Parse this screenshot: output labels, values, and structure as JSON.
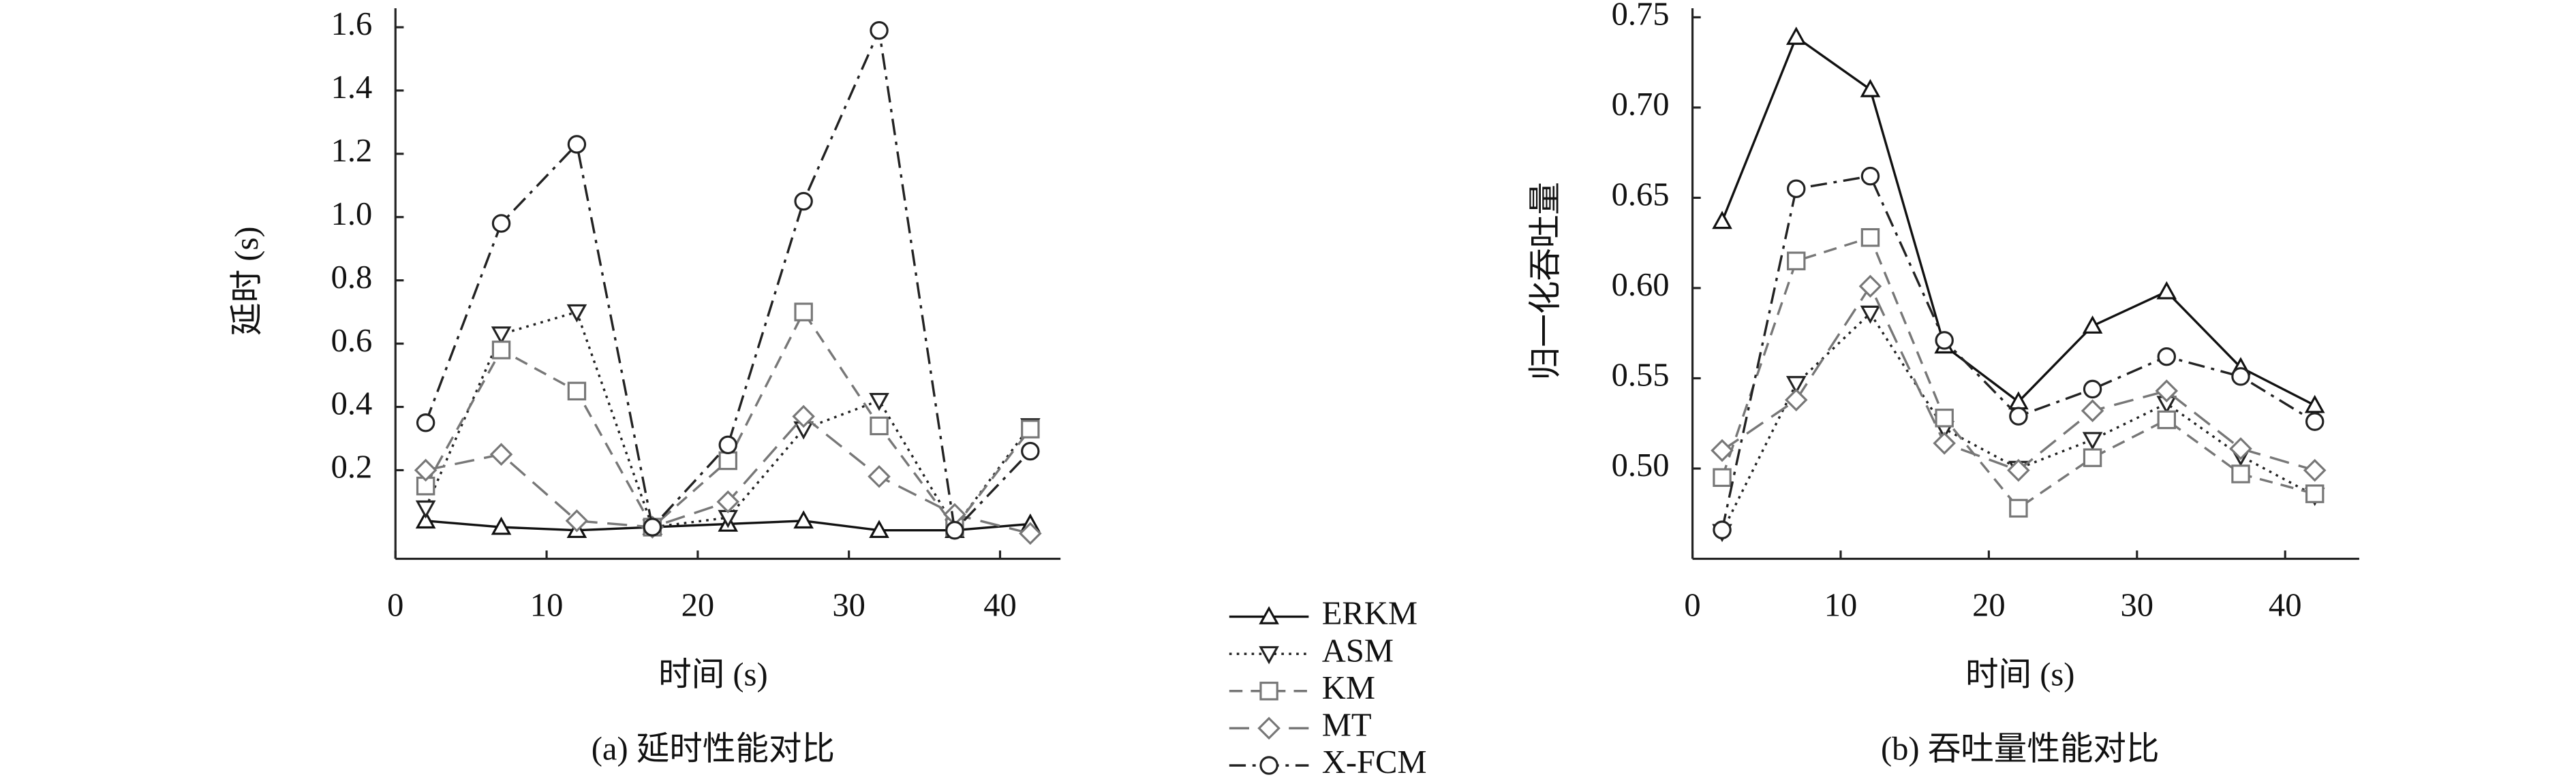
{
  "chart_data": [
    {
      "type": "line",
      "ylabel": "延时 (s)",
      "xlabel": "时间 (s)",
      "caption": "(a) 延时性能对比",
      "x": [
        2,
        7,
        12,
        17,
        22,
        27,
        32,
        37,
        42
      ],
      "xlim": [
        0,
        44
      ],
      "xticks": [
        0,
        10,
        20,
        30,
        40
      ],
      "ylim": [
        -0.08,
        1.66
      ],
      "yticks": [
        0.2,
        0.4,
        0.6,
        0.8,
        {
          "value": 1.0,
          "label": "1.0"
        },
        1.2,
        1.4,
        1.6
      ],
      "series": [
        {
          "name": "ERKM",
          "color": "#111111",
          "line_style": "solid",
          "marker": "triangle-up",
          "values": [
            0.04,
            0.02,
            0.01,
            0.02,
            0.03,
            0.04,
            0.01,
            0.01,
            0.03
          ]
        },
        {
          "name": "ASM",
          "color": "#222222",
          "line_style": "dotted",
          "marker": "triangle-down",
          "values": [
            0.08,
            0.63,
            0.7,
            0.02,
            0.05,
            0.33,
            0.42,
            0.02,
            0.34
          ]
        },
        {
          "name": "KM",
          "color": "#777777",
          "line_style": "dashed",
          "marker": "square",
          "values": [
            0.15,
            0.58,
            0.45,
            0.02,
            0.23,
            0.7,
            0.34,
            0.02,
            0.33
          ]
        },
        {
          "name": "MT",
          "color": "#777777",
          "line_style": "longdash",
          "marker": "diamond",
          "values": [
            0.2,
            0.25,
            0.04,
            0.02,
            0.1,
            0.37,
            0.18,
            0.06,
            0.0
          ]
        },
        {
          "name": "X-FCM",
          "color": "#222222",
          "line_style": "dashdot",
          "marker": "circle",
          "values": [
            0.35,
            0.98,
            1.23,
            0.02,
            0.28,
            1.05,
            1.59,
            0.01,
            0.26
          ]
        }
      ]
    },
    {
      "type": "line",
      "ylabel": "归一化吞吐量",
      "xlabel": "时间 (s)",
      "caption": "(b) 吞吐量性能对比",
      "x": [
        2,
        7,
        12,
        17,
        22,
        27,
        32,
        37,
        42
      ],
      "xlim": [
        0,
        45
      ],
      "xticks": [
        0,
        10,
        20,
        30,
        40
      ],
      "ylim": [
        0.45,
        0.755
      ],
      "yticks": [
        {
          "value": 0.5,
          "label": "0.50"
        },
        0.55,
        {
          "value": 0.6,
          "label": "0.60"
        },
        0.65,
        {
          "value": 0.7,
          "label": "0.70"
        },
        0.75
      ],
      "series": [
        {
          "color": "#111111",
          "line_style": "solid",
          "marker": "triangle-up",
          "values": [
            0.637,
            0.739,
            0.71,
            0.568,
            0.537,
            0.579,
            0.598,
            0.556,
            0.535
          ]
        },
        {
          "color": "#222222",
          "line_style": "dotted",
          "marker": "triangle-down",
          "values": [
            0.465,
            0.547,
            0.586,
            0.522,
            0.5,
            0.516,
            0.536,
            0.507,
            0.485
          ]
        },
        {
          "color": "#777777",
          "line_style": "dashed",
          "marker": "square",
          "values": [
            0.495,
            0.615,
            0.628,
            0.528,
            0.478,
            0.506,
            0.527,
            0.497,
            0.486
          ]
        },
        {
          "color": "#777777",
          "line_style": "longdash",
          "marker": "diamond",
          "values": [
            0.51,
            0.538,
            0.601,
            0.514,
            0.499,
            0.532,
            0.543,
            0.511,
            0.499
          ]
        },
        {
          "color": "#222222",
          "line_style": "dashdot",
          "marker": "circle",
          "values": [
            0.466,
            0.655,
            0.662,
            0.571,
            0.529,
            0.544,
            0.562,
            0.551,
            0.526
          ]
        }
      ]
    }
  ]
}
